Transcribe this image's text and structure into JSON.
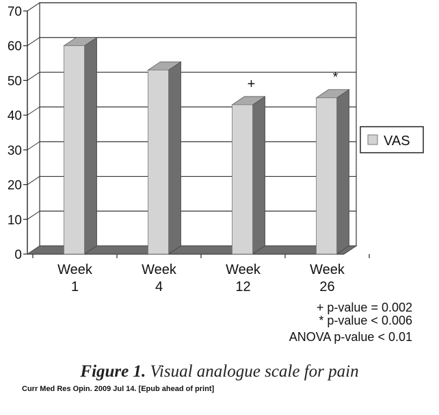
{
  "chart_data": {
    "type": "bar",
    "categories": [
      [
        "Week",
        "1"
      ],
      [
        "Week",
        "4"
      ],
      [
        "Week",
        "12"
      ],
      [
        "Week",
        "26"
      ]
    ],
    "series": [
      {
        "name": "VAS",
        "values": [
          60,
          53,
          43,
          45
        ],
        "markers": [
          "",
          "",
          "+",
          "*"
        ]
      }
    ],
    "ylim": [
      0,
      70
    ],
    "yticks": [
      0,
      10,
      20,
      30,
      40,
      50,
      60,
      70
    ],
    "grid": true,
    "legend": "right",
    "colors": {
      "bar_front": "#d4d4d4",
      "bar_side": "#6e6e6e",
      "bar_top": "#aaaaaa",
      "floor": "#6e6e6e"
    },
    "notes": [
      "+ p-value = 0.002",
      "* p-value < 0.006",
      "ANOVA p-value < 0.01"
    ]
  },
  "caption": {
    "number": "Figure 1.",
    "text": "Visual analogue scale for pain"
  },
  "citation": "Curr Med Res Opin. 2009 Jul 14. [Epub ahead of print]"
}
